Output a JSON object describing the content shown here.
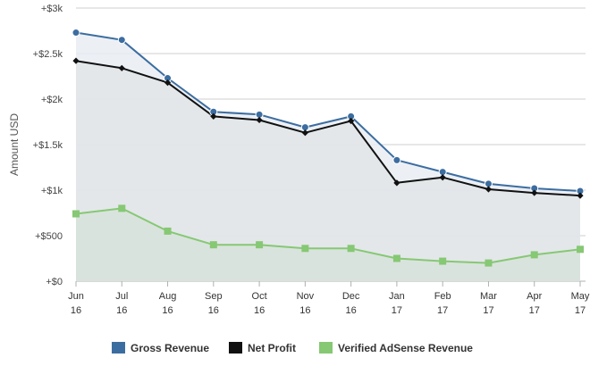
{
  "chart_data": {
    "type": "area",
    "ylabel": "Amount USD",
    "xlabel": "",
    "ylim": [
      0,
      3000
    ],
    "y_ticks": [
      {
        "value": 0,
        "label": "+$0"
      },
      {
        "value": 500,
        "label": "+$500"
      },
      {
        "value": 1000,
        "label": "+$1k"
      },
      {
        "value": 1500,
        "label": "+$1.5k"
      },
      {
        "value": 2000,
        "label": "+$2k"
      },
      {
        "value": 2500,
        "label": "+$2.5k"
      },
      {
        "value": 3000,
        "label": "+$3k"
      }
    ],
    "categories": [
      {
        "month": "Jun",
        "year": "16"
      },
      {
        "month": "Jul",
        "year": "16"
      },
      {
        "month": "Aug",
        "year": "16"
      },
      {
        "month": "Sep",
        "year": "16"
      },
      {
        "month": "Oct",
        "year": "16"
      },
      {
        "month": "Nov",
        "year": "16"
      },
      {
        "month": "Dec",
        "year": "16"
      },
      {
        "month": "Jan",
        "year": "17"
      },
      {
        "month": "Feb",
        "year": "17"
      },
      {
        "month": "Mar",
        "year": "17"
      },
      {
        "month": "Apr",
        "year": "17"
      },
      {
        "month": "May",
        "year": "17"
      }
    ],
    "series": [
      {
        "name": "Gross Revenue",
        "color": "#3c6da0",
        "fill": "#e9edf3",
        "marker": "circle",
        "values": [
          2730,
          2650,
          2230,
          1860,
          1830,
          1690,
          1810,
          1330,
          1200,
          1070,
          1020,
          990
        ]
      },
      {
        "name": "Net Profit",
        "color": "#111111",
        "fill": "#e2e5e8",
        "marker": "diamond",
        "values": [
          2420,
          2340,
          2180,
          1810,
          1770,
          1630,
          1760,
          1080,
          1140,
          1010,
          970,
          940
        ]
      },
      {
        "name": "Verified AdSense Revenue",
        "color": "#86c873",
        "fill": "#d7e2da",
        "marker": "square",
        "values": [
          740,
          800,
          550,
          400,
          400,
          360,
          360,
          250,
          220,
          200,
          290,
          350
        ]
      }
    ],
    "grid": true,
    "legend": "bottom-center"
  }
}
